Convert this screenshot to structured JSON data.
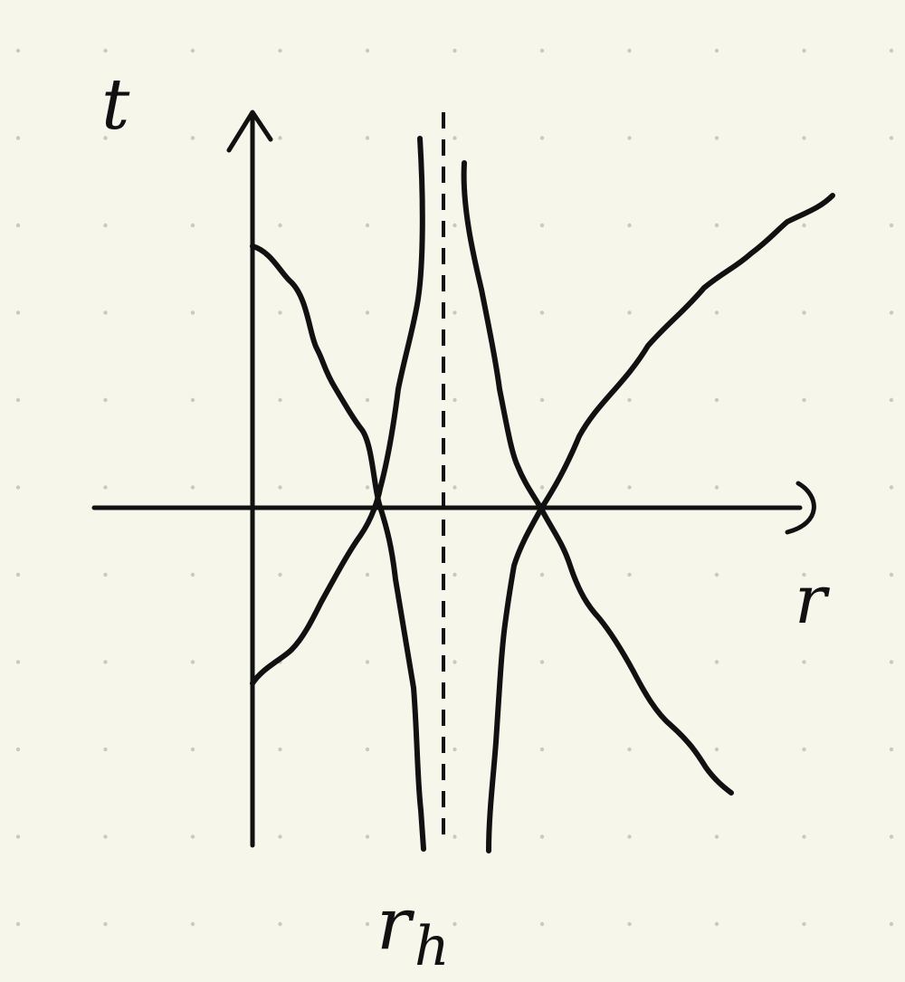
{
  "diagram": {
    "axes": {
      "vertical_label": "t",
      "horizontal_label": "r"
    },
    "horizon": {
      "label": "r",
      "subscript": "h",
      "line_style": "dashed"
    },
    "colors": {
      "paper": "#f7f6ea",
      "dot_grid": "#c9c9c2",
      "ink": "#111111"
    },
    "curves": [
      {
        "name": "curve-left-descending"
      },
      {
        "name": "curve-left-ascending"
      },
      {
        "name": "curve-right-descending"
      },
      {
        "name": "curve-right-ascending"
      }
    ]
  }
}
